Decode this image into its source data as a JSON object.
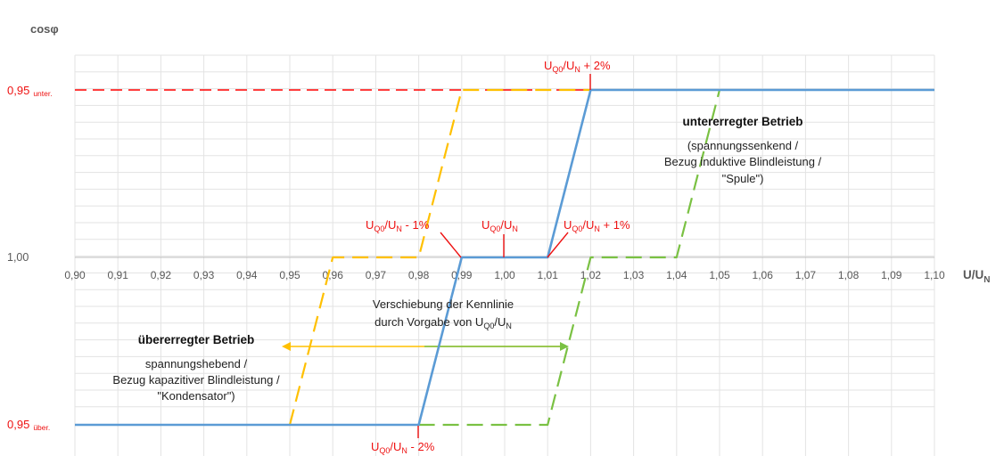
{
  "chart_data": {
    "type": "line",
    "ylabel_top": "cosφ",
    "xlabel": {
      "main": "U/U",
      "sub": "N"
    },
    "xlim": [
      0.9,
      1.1
    ],
    "x_ticks": [
      "0,90",
      "0,91",
      "0,92",
      "0,93",
      "0,94",
      "0,95",
      "0,96",
      "0,97",
      "0,98",
      "0,99",
      "1,00",
      "1,01",
      "1,02",
      "1,03",
      "1,04",
      "1,05",
      "1,06",
      "1,07",
      "1,08",
      "1,09",
      "1,10"
    ],
    "y_levels": [
      {
        "key": "under",
        "value": "0,95",
        "sub": "unter."
      },
      {
        "key": "one",
        "value": "1,00",
        "sub": ""
      },
      {
        "key": "over",
        "value": "0,95",
        "sub": "über."
      }
    ],
    "grid": true,
    "series": [
      {
        "style": "solid",
        "color": "#5b9bd5",
        "points": [
          [
            0.9,
            "over"
          ],
          [
            0.98,
            "over"
          ],
          [
            0.99,
            "one"
          ],
          [
            1.01,
            "one"
          ],
          [
            1.02,
            "under"
          ],
          [
            1.1,
            "under"
          ]
        ]
      },
      {
        "style": "dashed",
        "color": "#ffc000",
        "points": [
          [
            0.95,
            "over"
          ],
          [
            0.96,
            "one"
          ],
          [
            0.98,
            "one"
          ],
          [
            0.99,
            "under"
          ],
          [
            1.02,
            "under"
          ]
        ]
      },
      {
        "style": "dashed",
        "color": "#7ac143",
        "points": [
          [
            0.98,
            "over"
          ],
          [
            1.01,
            "over"
          ],
          [
            1.02,
            "one"
          ],
          [
            1.04,
            "one"
          ],
          [
            1.05,
            "under"
          ]
        ]
      },
      {
        "style": "dashed",
        "color": "#ff0000",
        "points": [
          [
            0.9,
            "under"
          ],
          [
            1.02,
            "under"
          ]
        ]
      }
    ],
    "annotations": {
      "plus2": {
        "main": "U",
        "sub1": "Q0",
        "mid": "/U",
        "sub2": "N",
        "tail": " + 2%"
      },
      "minus1": {
        "main": "U",
        "sub1": "Q0",
        "mid": "/U",
        "sub2": "N",
        "tail": " - 1%"
      },
      "zero": {
        "main": "U",
        "sub1": "Q0",
        "mid": "/U",
        "sub2": "N",
        "tail": ""
      },
      "plus1": {
        "main": "U",
        "sub1": "Q0",
        "mid": "/U",
        "sub2": "N",
        "tail": " + 1%"
      },
      "minus2": {
        "main": "U",
        "sub1": "Q0",
        "mid": "/U",
        "sub2": "N",
        "tail": " - 2%"
      }
    },
    "texts": {
      "under_title": "untererregter Betrieb",
      "under_lines": [
        "(spannungssenkend /",
        "Bezug induktive Blindleistung /",
        "\"Spule\")"
      ],
      "shift_line1": "Verschiebung der Kennlinie",
      "shift_line2": {
        "pre": "durch Vorgabe von U",
        "sub1": "Q0",
        "mid": "/U",
        "sub2": "N"
      },
      "over_title": "übererregter Betrieb",
      "over_lines": [
        "spannungshebend /",
        "Bezug kapazitiver Blindleistung /",
        "\"Kondensator\")"
      ]
    }
  }
}
